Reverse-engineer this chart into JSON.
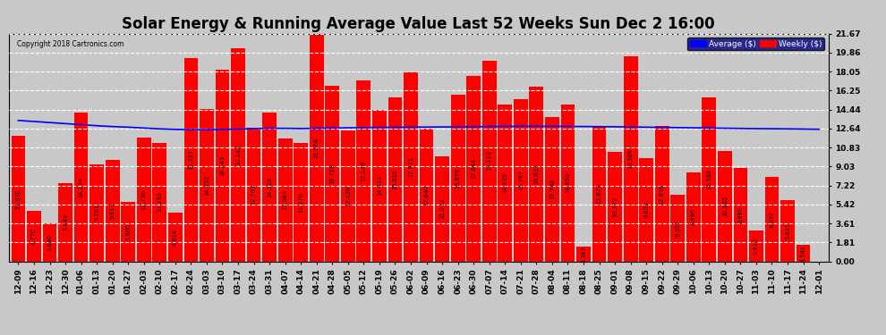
{
  "title": "Solar Energy & Running Average Value Last 52 Weeks Sun Dec 2 16:00",
  "copyright": "Copyright 2018 Cartronics.com",
  "bar_color": "#ff0000",
  "average_line_color": "#0000ff",
  "background_color": "#c8c8c8",
  "plot_bg_color": "#c8c8c8",
  "grid_color": "#ffffff",
  "ylim": [
    0,
    21.67
  ],
  "yticks": [
    0.0,
    1.81,
    3.61,
    5.42,
    7.22,
    9.03,
    10.83,
    12.64,
    14.44,
    16.25,
    18.05,
    19.86,
    21.67
  ],
  "categories": [
    "12-09",
    "12-16",
    "12-23",
    "12-30",
    "01-06",
    "01-13",
    "01-20",
    "01-27",
    "02-03",
    "02-10",
    "02-17",
    "02-24",
    "03-03",
    "03-10",
    "03-17",
    "03-24",
    "03-31",
    "04-07",
    "04-14",
    "04-21",
    "04-28",
    "05-05",
    "05-12",
    "05-19",
    "05-26",
    "06-02",
    "06-09",
    "06-16",
    "06-23",
    "06-30",
    "07-07",
    "07-14",
    "07-21",
    "07-28",
    "08-04",
    "08-11",
    "08-18",
    "08-25",
    "09-01",
    "09-08",
    "09-15",
    "09-22",
    "09-29",
    "10-06",
    "10-13",
    "10-20",
    "10-27",
    "11-03",
    "11-10",
    "11-17",
    "11-24",
    "12-01"
  ],
  "weekly_values": [
    11.938,
    4.77,
    3.646,
    7.449,
    14.174,
    9.261,
    9.613,
    5.66,
    11.736,
    11.293,
    4.614,
    19.337,
    14.452,
    18.245,
    20.242,
    12.703,
    14.128,
    11.681,
    11.27,
    21.666,
    16.728,
    12.439,
    17.248,
    14.432,
    15.616,
    17.971,
    12.64,
    10.003,
    15.879,
    17.644,
    19.11,
    14.929,
    15.397,
    16.633,
    13.748,
    14.95,
    1.367,
    12.873,
    10.379,
    19.509,
    9.803,
    12.836,
    6.305,
    8.496,
    15.584,
    10.505,
    8.89,
    2.92,
    8.032,
    5.831,
    1.543,
    0.0
  ],
  "average_values": [
    13.4,
    13.3,
    13.2,
    13.1,
    13.0,
    12.9,
    12.82,
    12.76,
    12.68,
    12.6,
    12.55,
    12.52,
    12.52,
    12.55,
    12.58,
    12.62,
    12.65,
    12.65,
    12.63,
    12.65,
    12.68,
    12.7,
    12.72,
    12.74,
    12.75,
    12.76,
    12.77,
    12.78,
    12.79,
    12.8,
    12.82,
    12.83,
    12.84,
    12.84,
    12.84,
    12.83,
    12.82,
    12.81,
    12.8,
    12.78,
    12.76,
    12.74,
    12.72,
    12.7,
    12.68,
    12.66,
    12.64,
    12.62,
    12.61,
    12.6,
    12.58,
    12.56
  ],
  "legend_labels": [
    "Average ($)",
    "Weekly ($)"
  ],
  "legend_colors": [
    "#0000ff",
    "#ff0000"
  ],
  "title_fontsize": 12,
  "tick_fontsize": 6.5,
  "value_fontsize": 4.8
}
